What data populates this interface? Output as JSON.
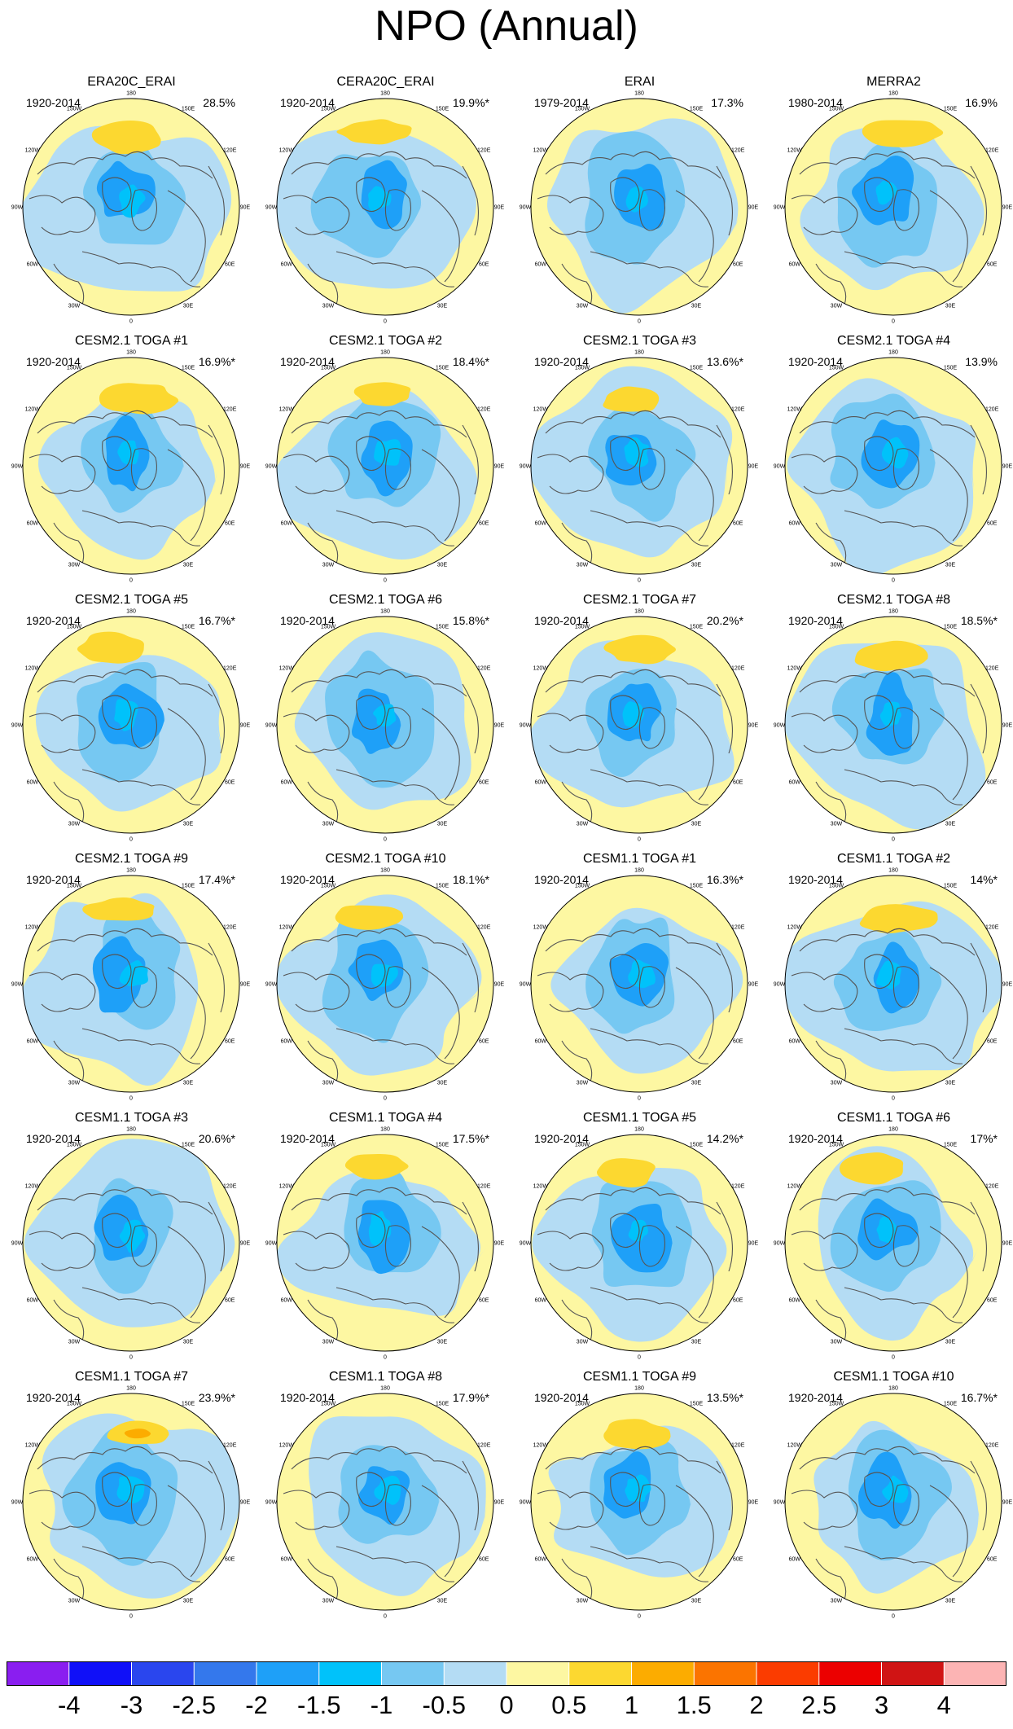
{
  "title": "NPO (Annual)",
  "lon_labels": [
    "180",
    "150W",
    "150E",
    "120W",
    "120E",
    "90W",
    "90E",
    "60W",
    "60E",
    "30W",
    "30E",
    "0"
  ],
  "panels": [
    {
      "title": "ERA20C_ERAI",
      "period": "1920-2014",
      "pct": "28.5%"
    },
    {
      "title": "CERA20C_ERAI",
      "period": "1920-2014",
      "pct": "19.9%*"
    },
    {
      "title": "ERAI",
      "period": "1979-2014",
      "pct": "17.3%"
    },
    {
      "title": "MERRA2",
      "period": "1980-2014",
      "pct": "16.9%"
    },
    {
      "title": "CESM2.1 TOGA #1",
      "period": "1920-2014",
      "pct": "16.9%*"
    },
    {
      "title": "CESM2.1 TOGA #2",
      "period": "1920-2014",
      "pct": "18.4%*"
    },
    {
      "title": "CESM2.1 TOGA #3",
      "period": "1920-2014",
      "pct": "13.6%*"
    },
    {
      "title": "CESM2.1 TOGA #4",
      "period": "1920-2014",
      "pct": "13.9%"
    },
    {
      "title": "CESM2.1 TOGA #5",
      "period": "1920-2014",
      "pct": "16.7%*"
    },
    {
      "title": "CESM2.1 TOGA #6",
      "period": "1920-2014",
      "pct": "15.8%*"
    },
    {
      "title": "CESM2.1 TOGA #7",
      "period": "1920-2014",
      "pct": "20.2%*"
    },
    {
      "title": "CESM2.1 TOGA #8",
      "period": "1920-2014",
      "pct": "18.5%*"
    },
    {
      "title": "CESM2.1 TOGA #9",
      "period": "1920-2014",
      "pct": "17.4%*"
    },
    {
      "title": "CESM2.1 TOGA #10",
      "period": "1920-2014",
      "pct": "18.1%*"
    },
    {
      "title": "CESM1.1 TOGA #1",
      "period": "1920-2014",
      "pct": "16.3%*"
    },
    {
      "title": "CESM1.1 TOGA #2",
      "period": "1920-2014",
      "pct": "14%*"
    },
    {
      "title": "CESM1.1 TOGA #3",
      "period": "1920-2014",
      "pct": "20.6%*"
    },
    {
      "title": "CESM1.1 TOGA #4",
      "period": "1920-2014",
      "pct": "17.5%*"
    },
    {
      "title": "CESM1.1 TOGA #5",
      "period": "1920-2014",
      "pct": "14.2%*"
    },
    {
      "title": "CESM1.1 TOGA #6",
      "period": "1920-2014",
      "pct": "17%*"
    },
    {
      "title": "CESM1.1 TOGA #7",
      "period": "1920-2014",
      "pct": "23.9%*"
    },
    {
      "title": "CESM1.1 TOGA #8",
      "period": "1920-2014",
      "pct": "17.9%*"
    },
    {
      "title": "CESM1.1 TOGA #9",
      "period": "1920-2014",
      "pct": "13.5%*"
    },
    {
      "title": "CESM1.1 TOGA #10",
      "period": "1920-2014",
      "pct": "16.7%*"
    }
  ],
  "colorbar": {
    "colors": [
      "#8a1ef0",
      "#1010f8",
      "#2a46ee",
      "#3478ec",
      "#1ea0f8",
      "#00c2fa",
      "#76c8f2",
      "#b4dcf4",
      "#fdf7a2",
      "#fcd830",
      "#fcac00",
      "#fb7400",
      "#fb3c00",
      "#ec0000",
      "#d01414",
      "#fcb4b4"
    ],
    "labels": [
      "-4",
      "-3",
      "-2.5",
      "-2",
      "-1.5",
      "-1",
      "-0.5",
      "0",
      "0.5",
      "1",
      "1.5",
      "2",
      "2.5",
      "3",
      "4"
    ]
  },
  "map_colors": {
    "light_blue": "#b4dcf4",
    "mid_blue": "#76c8f2",
    "blue": "#1ea0f8",
    "cyan_blue": "#00c2fa",
    "dark_blue": "#3478ec",
    "yellow": "#fdf7a2",
    "gold": "#fcd830",
    "orange": "#fcac00",
    "coast": "#555555"
  }
}
